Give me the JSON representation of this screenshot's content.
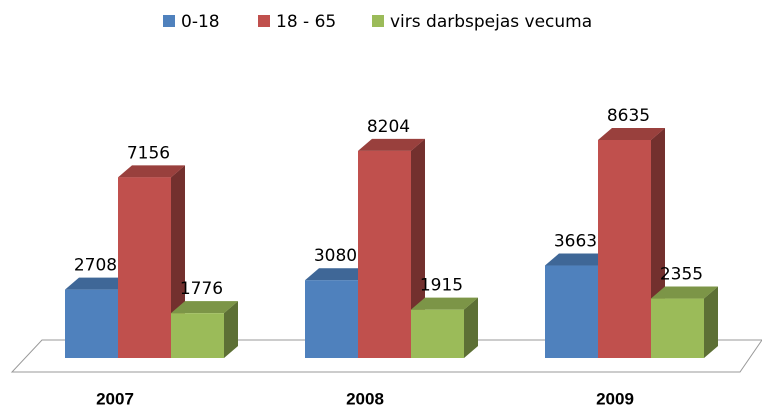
{
  "chart_data": {
    "type": "bar3d",
    "categories": [
      "2007",
      "2008",
      "2009"
    ],
    "series": [
      {
        "name": "0-18",
        "color": "#4f81bd",
        "values": [
          2708,
          3080,
          3663
        ]
      },
      {
        "name": "18 - 65",
        "color": "#c0504d",
        "values": [
          7156,
          8204,
          8635
        ]
      },
      {
        "name": "virs darbspejas vecuma",
        "color": "#9bbb59",
        "values": [
          1776,
          1915,
          2355
        ]
      }
    ],
    "legend": "top"
  }
}
